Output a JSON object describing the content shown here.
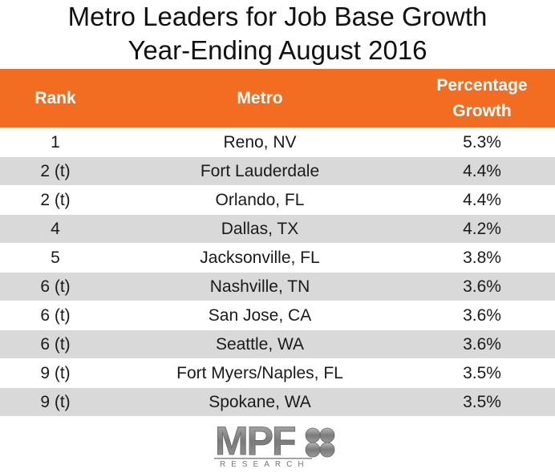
{
  "title": {
    "line1": "Metro Leaders for Job Base Growth",
    "line2": "Year-Ending August 2016"
  },
  "table": {
    "headers": {
      "rank": "Rank",
      "metro": "Metro",
      "growth_line1": "Percentage",
      "growth_line2": "Growth"
    },
    "rows": [
      {
        "rank": "1",
        "metro": "Reno, NV",
        "growth": "5.3%"
      },
      {
        "rank": "2 (t)",
        "metro": "Fort Lauderdale",
        "growth": "4.4%"
      },
      {
        "rank": "2 (t)",
        "metro": "Orlando, FL",
        "growth": "4.4%"
      },
      {
        "rank": "4",
        "metro": "Dallas, TX",
        "growth": "4.2%"
      },
      {
        "rank": "5",
        "metro": "Jacksonville, FL",
        "growth": "3.8%"
      },
      {
        "rank": "6 (t)",
        "metro": "Nashville, TN",
        "growth": "3.6%"
      },
      {
        "rank": "6 (t)",
        "metro": "San Jose, CA",
        "growth": "3.6%"
      },
      {
        "rank": "6 (t)",
        "metro": "Seattle, WA",
        "growth": "3.6%"
      },
      {
        "rank": "9 (t)",
        "metro": "Fort Myers/Naples, FL",
        "growth": "3.5%"
      },
      {
        "rank": "9 (t)",
        "metro": "Spokane, WA",
        "growth": "3.5%"
      }
    ]
  },
  "logo": {
    "mark": "MPF",
    "sub": "RESEARCH"
  },
  "colors": {
    "header_bg": "#f26d21",
    "stripe": "#d9d9d9"
  }
}
